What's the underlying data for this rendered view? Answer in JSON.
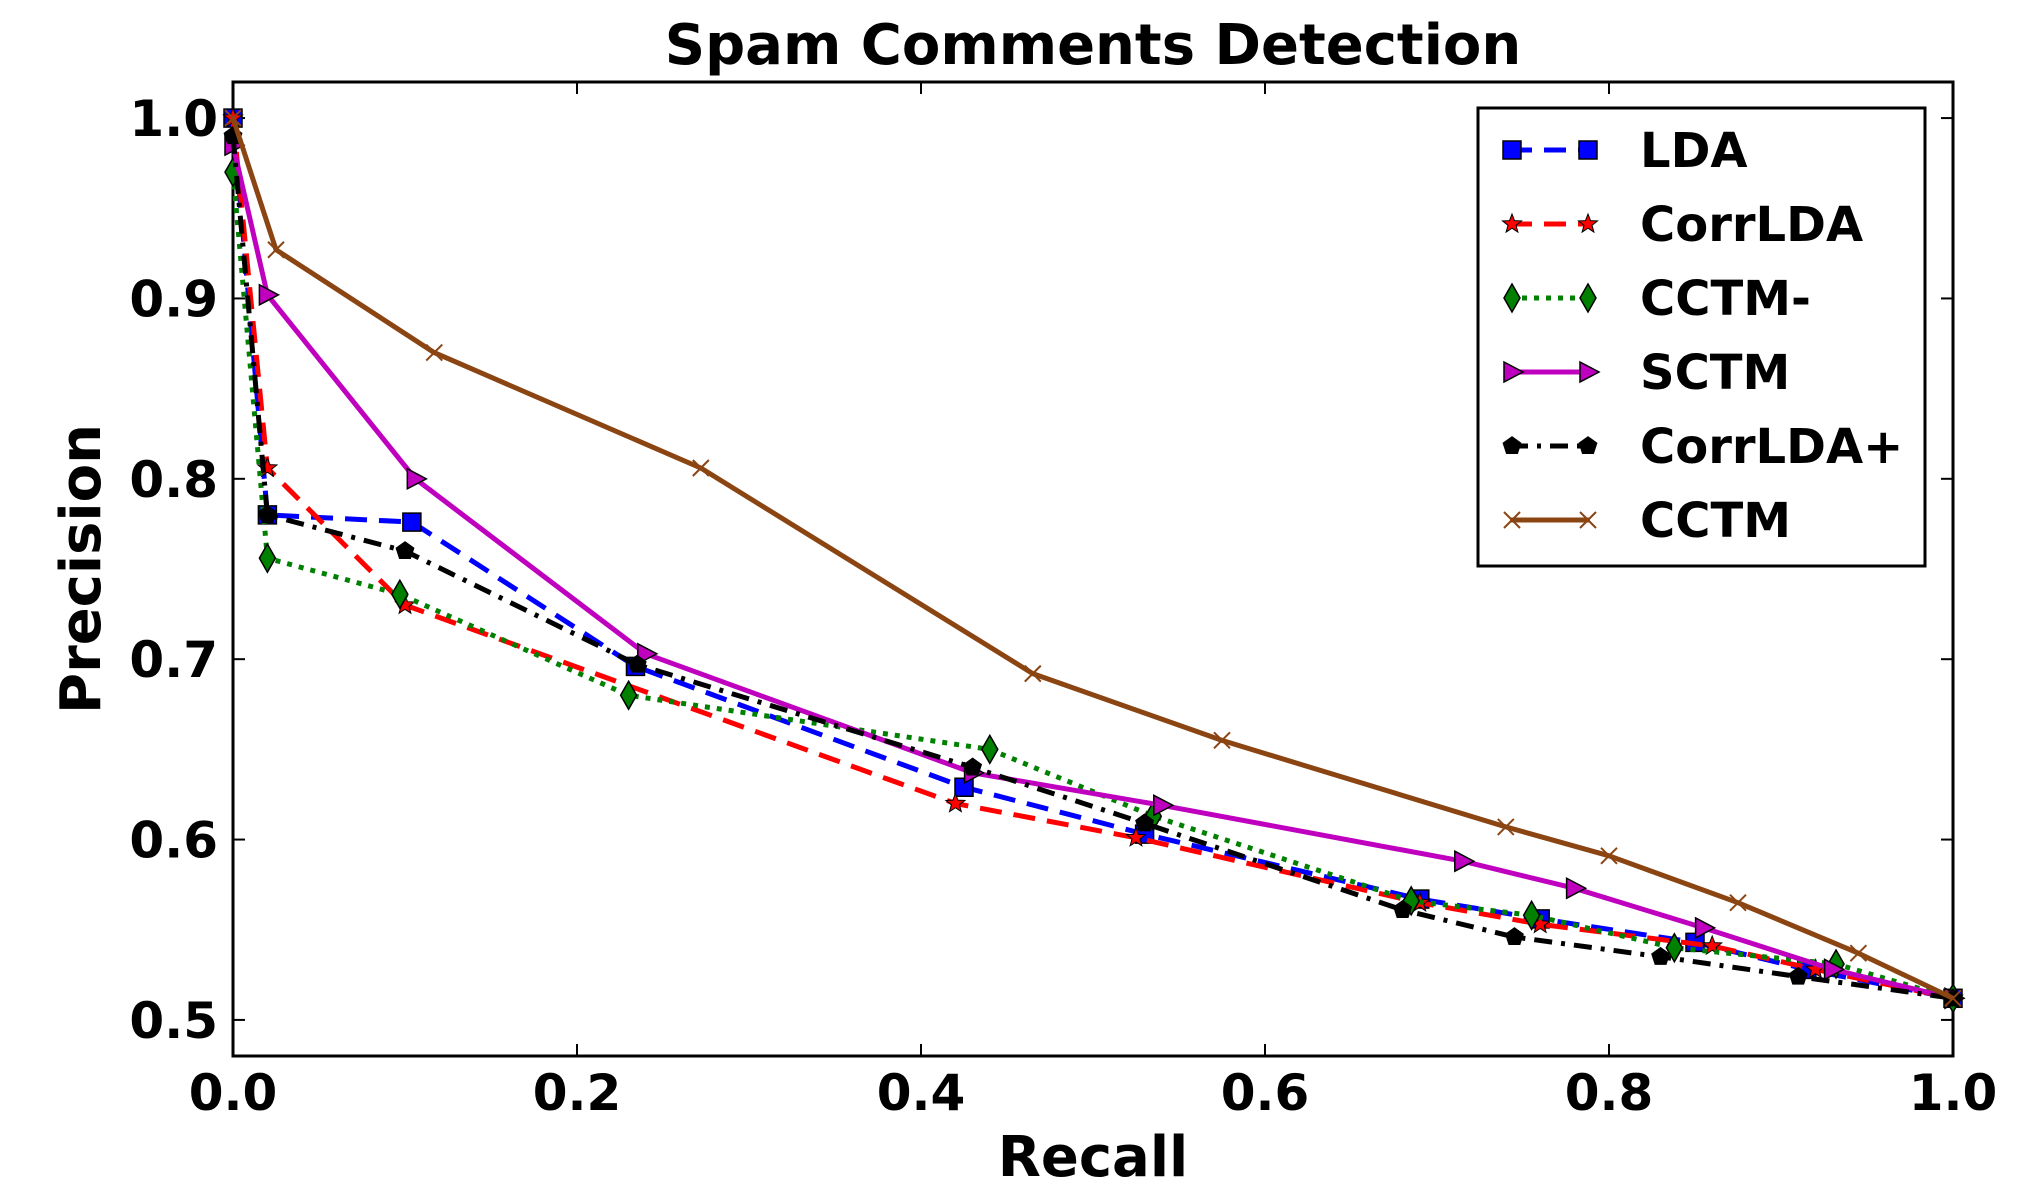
{
  "chart_data": {
    "type": "line",
    "title": "Spam Comments Detection",
    "xlabel": "Recall",
    "ylabel": "Precision",
    "xlim": [
      0.0,
      1.0
    ],
    "ylim": [
      0.48,
      1.02
    ],
    "xticks": [
      0.0,
      0.2,
      0.4,
      0.6,
      0.8,
      1.0
    ],
    "xtick_labels": [
      "0.0",
      "0.2",
      "0.4",
      "0.6",
      "0.8",
      "1.0"
    ],
    "yticks": [
      0.5,
      0.6,
      0.7,
      0.8,
      0.9,
      1.0
    ],
    "ytick_labels": [
      "0.5",
      "0.6",
      "0.7",
      "0.8",
      "0.9",
      "1.0"
    ],
    "grid": false,
    "legend_position": "top-right",
    "series": [
      {
        "name": "LDA",
        "color": "#0000ff",
        "dash": "dashed",
        "marker": "square",
        "points": [
          [
            0.0,
            1.0
          ],
          [
            0.02,
            0.78
          ],
          [
            0.104,
            0.776
          ],
          [
            0.234,
            0.696
          ],
          [
            0.425,
            0.629
          ],
          [
            0.53,
            0.603
          ],
          [
            0.69,
            0.567
          ],
          [
            0.76,
            0.556
          ],
          [
            0.85,
            0.543
          ],
          [
            0.915,
            0.528
          ],
          [
            1.0,
            0.512
          ]
        ]
      },
      {
        "name": "CorrLDA",
        "color": "#ff0000",
        "dash": "dashed",
        "marker": "star",
        "points": [
          [
            0.0,
            1.0
          ],
          [
            0.02,
            0.806
          ],
          [
            0.1,
            0.73
          ],
          [
            0.42,
            0.62
          ],
          [
            0.525,
            0.601
          ],
          [
            0.69,
            0.565
          ],
          [
            0.76,
            0.553
          ],
          [
            0.86,
            0.541
          ],
          [
            0.92,
            0.528
          ],
          [
            1.0,
            0.512
          ]
        ]
      },
      {
        "name": "CCTM-",
        "color": "#008000",
        "dash": "dotted",
        "marker": "diamond",
        "points": [
          [
            0.0,
            0.97
          ],
          [
            0.02,
            0.756
          ],
          [
            0.097,
            0.736
          ],
          [
            0.23,
            0.68
          ],
          [
            0.44,
            0.65
          ],
          [
            0.535,
            0.613
          ],
          [
            0.685,
            0.566
          ],
          [
            0.755,
            0.558
          ],
          [
            0.838,
            0.54
          ],
          [
            0.932,
            0.531
          ],
          [
            1.0,
            0.512
          ]
        ]
      },
      {
        "name": "SCTM",
        "color": "#bf00bf",
        "dash": "solid",
        "marker": "triangle-right",
        "points": [
          [
            0.0,
            0.985
          ],
          [
            0.02,
            0.902
          ],
          [
            0.106,
            0.8
          ],
          [
            0.24,
            0.703
          ],
          [
            0.43,
            0.637
          ],
          [
            0.54,
            0.619
          ],
          [
            0.715,
            0.588
          ],
          [
            0.78,
            0.573
          ],
          [
            0.855,
            0.551
          ],
          [
            0.93,
            0.528
          ],
          [
            1.0,
            0.512
          ]
        ]
      },
      {
        "name": "CorrLDA+",
        "color": "#000000",
        "dash": "dashdot",
        "marker": "pentagon",
        "points": [
          [
            0.0,
            0.99
          ],
          [
            0.02,
            0.78
          ],
          [
            0.1,
            0.76
          ],
          [
            0.235,
            0.697
          ],
          [
            0.43,
            0.64
          ],
          [
            0.53,
            0.609
          ],
          [
            0.68,
            0.561
          ],
          [
            0.745,
            0.546
          ],
          [
            0.83,
            0.535
          ],
          [
            0.91,
            0.524
          ],
          [
            1.0,
            0.512
          ]
        ]
      },
      {
        "name": "CCTM",
        "color": "#8b4513",
        "dash": "solid",
        "marker": "x",
        "points": [
          [
            0.0,
            1.0
          ],
          [
            0.025,
            0.927
          ],
          [
            0.117,
            0.87
          ],
          [
            0.272,
            0.806
          ],
          [
            0.465,
            0.692
          ],
          [
            0.575,
            0.655
          ],
          [
            0.74,
            0.607
          ],
          [
            0.8,
            0.591
          ],
          [
            0.875,
            0.565
          ],
          [
            0.945,
            0.537
          ],
          [
            1.0,
            0.512
          ]
        ]
      }
    ]
  }
}
